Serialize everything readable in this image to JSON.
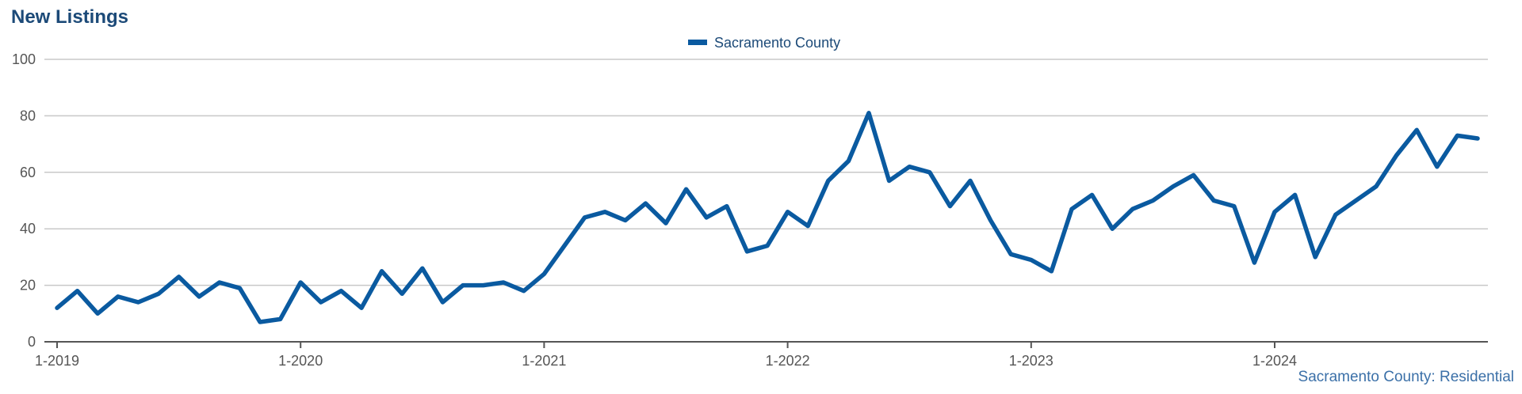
{
  "title": "New Listings",
  "footnote": "Sacramento County: Residential",
  "colors": {
    "series": "#0a5aa0",
    "grid": "#c8c8c8",
    "axis": "#555555",
    "title": "#1c4a78"
  },
  "chart_data": {
    "type": "line",
    "title": "New Listings",
    "xlabel": "",
    "ylabel": "",
    "ylim": [
      0,
      100
    ],
    "yticks": [
      "0",
      "20",
      "40",
      "60",
      "80",
      "100"
    ],
    "xticks": [
      "1-2019",
      "1-2020",
      "1-2021",
      "1-2022",
      "1-2023",
      "1-2024"
    ],
    "grid": true,
    "legend": "top-center",
    "series": [
      {
        "name": "Sacramento County",
        "start": "2019-01",
        "frequency": "monthly",
        "values": [
          12,
          18,
          10,
          16,
          14,
          17,
          23,
          16,
          21,
          19,
          7,
          8,
          21,
          14,
          18,
          12,
          25,
          17,
          26,
          14,
          20,
          20,
          21,
          18,
          24,
          34,
          44,
          46,
          43,
          49,
          42,
          54,
          44,
          48,
          32,
          34,
          46,
          41,
          57,
          64,
          81,
          57,
          62,
          60,
          48,
          57,
          43,
          31,
          29,
          25,
          47,
          52,
          40,
          47,
          50,
          55,
          59,
          50,
          48,
          28,
          46,
          52,
          30,
          45,
          50,
          55,
          66,
          75,
          62,
          73,
          72
        ]
      }
    ]
  }
}
